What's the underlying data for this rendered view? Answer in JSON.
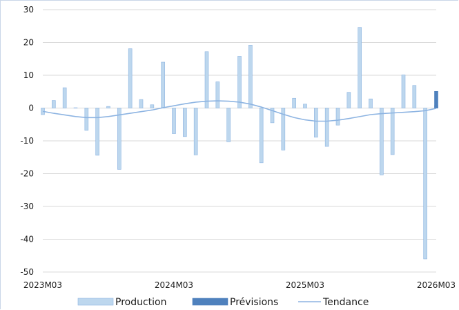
{
  "chart_data": {
    "type": "bar",
    "title": "",
    "xlabel": "",
    "ylabel": "",
    "ylim": [
      -50,
      30
    ],
    "yticks": [
      30,
      20,
      10,
      0,
      -10,
      -20,
      -30,
      -40,
      -50
    ],
    "x_tick_labels": [
      "2023M03",
      "2024M03",
      "2025M03",
      "2026M03"
    ],
    "grid": true,
    "legend_position": "bottom",
    "categories": [
      "2023M03",
      "2023M04",
      "2023M05",
      "2023M06",
      "2023M07",
      "2023M08",
      "2023M09",
      "2023M10",
      "2023M11",
      "2023M12",
      "2024M01",
      "2024M02",
      "2024M03",
      "2024M04",
      "2024M05",
      "2024M06",
      "2024M07",
      "2024M08",
      "2024M09",
      "2024M10",
      "2024M11",
      "2024M12",
      "2025M01",
      "2025M02",
      "2025M03",
      "2025M04",
      "2025M05",
      "2025M06",
      "2025M07",
      "2025M08",
      "2025M09",
      "2025M10",
      "2025M11",
      "2025M12",
      "2026M01",
      "2026M02",
      "2026M03"
    ],
    "series": [
      {
        "name": "Production",
        "kind": "bar",
        "color": "#bdd7ee",
        "edge_color": "#8db4e2",
        "values": [
          -2.0,
          2.3,
          6.2,
          0.1,
          -6.8,
          -14.4,
          0.5,
          -18.7,
          18.1,
          2.6,
          1.0,
          14.0,
          -7.8,
          -8.7,
          -14.3,
          17.2,
          8.0,
          -10.3,
          15.8,
          19.2,
          -16.7,
          -4.5,
          -12.8,
          3.0,
          1.2,
          -8.9,
          -11.7,
          -5.2,
          4.8,
          24.6,
          2.8,
          -20.4,
          -14.2,
          10.1,
          6.9,
          -46.0,
          0.8
        ]
      },
      {
        "name": "Prévisions",
        "kind": "bar",
        "color": "#4f81bd",
        "values": [
          null,
          null,
          null,
          null,
          null,
          null,
          null,
          null,
          null,
          null,
          null,
          null,
          null,
          null,
          null,
          null,
          null,
          null,
          null,
          null,
          null,
          null,
          null,
          null,
          null,
          null,
          null,
          null,
          null,
          null,
          null,
          null,
          null,
          null,
          null,
          null,
          5.1
        ]
      },
      {
        "name": "Tendance",
        "kind": "line",
        "color": "#8db4e2",
        "values": [
          -1.0,
          -1.6,
          -2.1,
          -2.6,
          -2.9,
          -2.9,
          -2.6,
          -2.1,
          -1.6,
          -1.1,
          -0.6,
          0.1,
          0.7,
          1.3,
          1.8,
          2.1,
          2.2,
          2.1,
          1.8,
          1.2,
          0.3,
          -0.8,
          -1.9,
          -2.9,
          -3.6,
          -4.0,
          -4.0,
          -3.7,
          -3.2,
          -2.6,
          -2.0,
          -1.7,
          -1.5,
          -1.3,
          -1.1,
          -0.8,
          -0.1
        ]
      }
    ]
  }
}
